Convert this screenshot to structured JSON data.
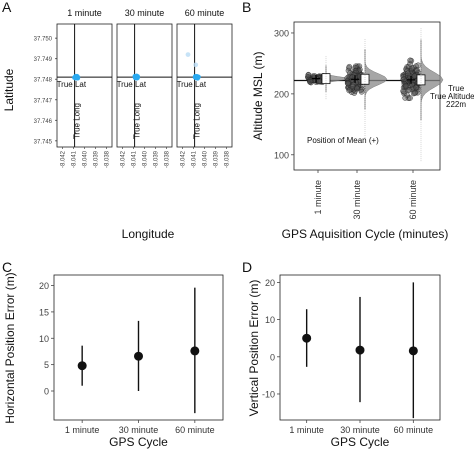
{
  "panels": {
    "A": "A",
    "B": "B",
    "C": "C",
    "D": "D"
  },
  "chart_data": [
    {
      "type": "scatter",
      "panel": "A",
      "facets": [
        "1 minute",
        "30 minute",
        "60 minute"
      ],
      "xlabel": "Longitude",
      "ylabel": "Latitude",
      "x_ticks": [
        "-8.042",
        "-8.041",
        "-8.040",
        "-8.039",
        "-8.038"
      ],
      "y_ticks": [
        "37.750",
        "37.749",
        "37.748",
        "37.747",
        "37.746",
        "37.745"
      ],
      "xlim": [
        -8.0425,
        -8.0375
      ],
      "ylim": [
        37.7447,
        37.7503
      ],
      "true_lat": 37.7481,
      "true_long": -8.0409,
      "true_lat_label": "True Lat",
      "true_long_label": "True Long",
      "point_color": "#29a9f0",
      "cluster": {
        "x": -8.0409,
        "y": 37.7481
      },
      "outliers_60": [
        {
          "x": -8.0415,
          "y": 37.7492
        },
        {
          "x": -8.0408,
          "y": 37.7487
        }
      ]
    },
    {
      "type": "scatter",
      "panel": "B",
      "title": "",
      "xlabel": "GPS Aquisition Cycle (minutes)",
      "ylabel": "Altitude MSL (m)",
      "categories": [
        "1 minute",
        "30 minute",
        "60 minute"
      ],
      "y_ticks": [
        "100",
        "200",
        "300"
      ],
      "ylim": [
        75,
        318
      ],
      "true_altitude": 222,
      "true_altitude_label": "True Altitude",
      "true_altitude_value_label": "222m",
      "mean_note": "Position of Mean (+)",
      "groups": [
        {
          "category": "1 minute",
          "min": 190,
          "max": 262,
          "mean": 225
        },
        {
          "category": "30 minute",
          "min": 125,
          "max": 290,
          "mean": 224
        },
        {
          "category": "60 minute",
          "min": 88,
          "max": 308,
          "mean": 223
        }
      ]
    },
    {
      "type": "scatter",
      "panel": "C",
      "xlabel": "GPS Cycle",
      "ylabel": "Horizontal Position Error (m)",
      "categories": [
        "1 minute",
        "30 minute",
        "60 minute"
      ],
      "y_ticks": [
        "0",
        "5",
        "10",
        "15",
        "20"
      ],
      "ylim": [
        -5.5,
        22
      ],
      "series": [
        {
          "mean": [
            4.8,
            6.6,
            7.6
          ],
          "lower": [
            1.0,
            0.0,
            -4.2
          ],
          "upper": [
            8.6,
            13.3,
            19.6
          ]
        }
      ]
    },
    {
      "type": "scatter",
      "panel": "D",
      "xlabel": "GPS Cycle",
      "ylabel": "Vertical Position Error (m)",
      "categories": [
        "1 minute",
        "30 minute",
        "60 minute"
      ],
      "y_ticks": [
        "20",
        "10",
        "0",
        "-10"
      ],
      "ylim": [
        -17,
        22
      ],
      "series": [
        {
          "mean": [
            5.0,
            1.8,
            1.6
          ],
          "lower": [
            -2.7,
            -12.2,
            -16.5
          ],
          "upper": [
            12.8,
            16.1,
            20.0
          ]
        }
      ]
    }
  ]
}
